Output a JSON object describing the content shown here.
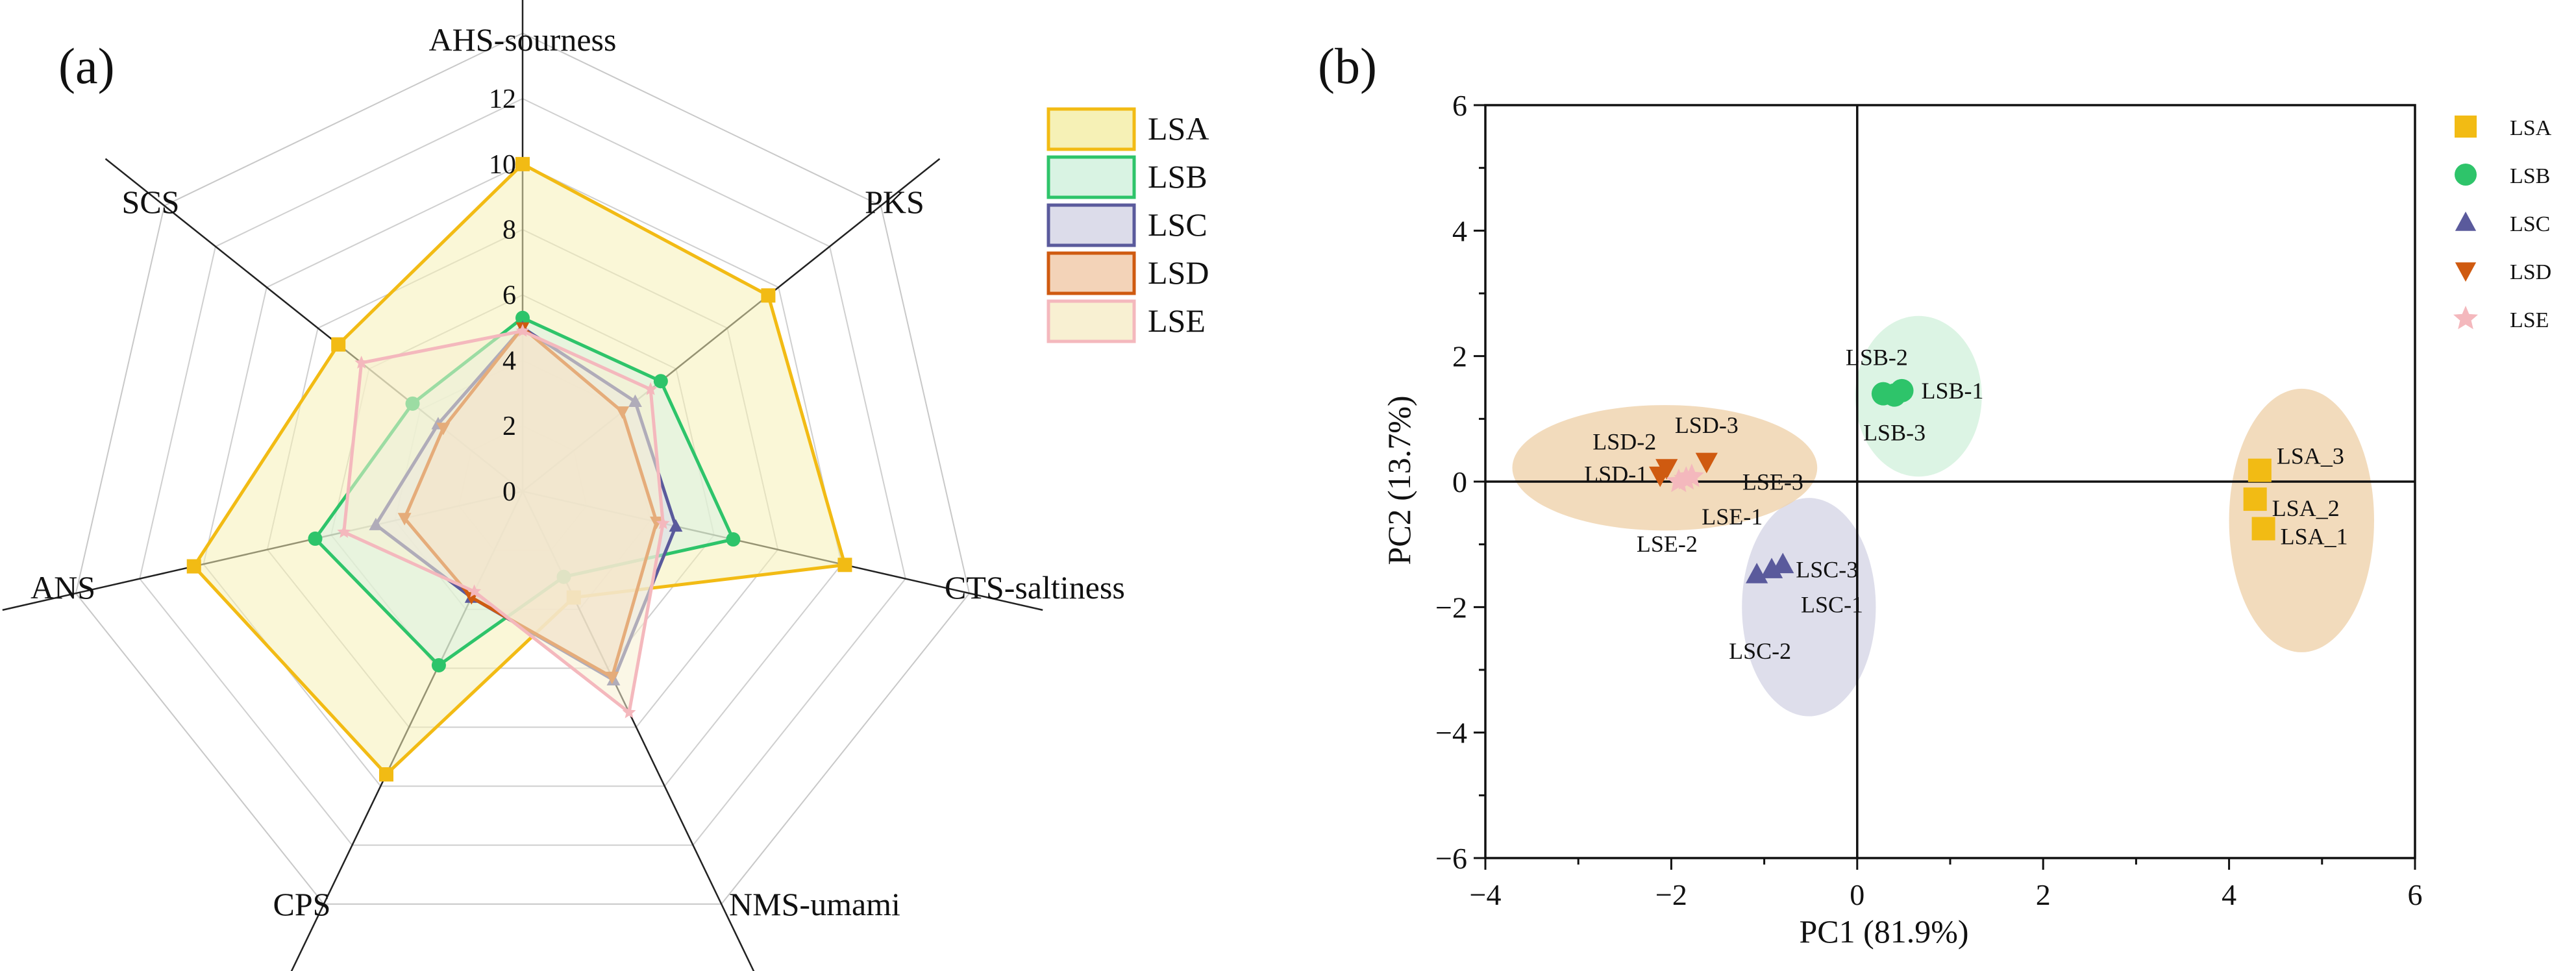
{
  "chart_data": [
    {
      "panel_label": "(a)",
      "type": "radar",
      "axes": [
        "AHS-sourness",
        "PKS",
        "CTS-saltiness",
        "NMS-umami",
        "CPS",
        "ANS",
        "SCS"
      ],
      "rlim": [
        0,
        12
      ],
      "rticks": [
        "0",
        "2",
        "4",
        "6",
        "8",
        "10",
        "12"
      ],
      "series": [
        {
          "name": "LSA",
          "values": [
            10.0,
            9.6,
            10.1,
            3.6,
            9.6,
            10.3,
            7.2
          ],
          "line": "#f2bb14",
          "fill": "#f6f1b6",
          "marker": "square"
        },
        {
          "name": "LSB",
          "values": [
            5.3,
            5.4,
            6.6,
            2.9,
            5.9,
            6.5,
            4.3
          ],
          "line": "#2ec46a",
          "fill": "#d9f3e3",
          "marker": "circle"
        },
        {
          "name": "LSC",
          "values": [
            5.0,
            4.4,
            4.8,
            6.4,
            3.6,
            4.6,
            3.3
          ],
          "line": "#5a5a9c",
          "fill": "#dcdcea",
          "marker": "triangle-up"
        },
        {
          "name": "LSD",
          "values": [
            5.0,
            3.9,
            4.2,
            6.3,
            3.6,
            3.7,
            3.1
          ],
          "line": "#cf5a10",
          "fill": "#f3d3b8",
          "marker": "triangle-down"
        },
        {
          "name": "LSE",
          "values": [
            4.9,
            5.0,
            4.4,
            7.5,
            3.4,
            5.6,
            6.3
          ],
          "line": "#f4b8bd",
          "fill": "#f8f0d2",
          "marker": "star"
        }
      ]
    },
    {
      "panel_label": "(b)",
      "type": "scatter",
      "xlabel": "PC1 (81.9%)",
      "ylabel": "PC2 (13.7%)",
      "xlim": [
        -4,
        6
      ],
      "ylim": [
        -6,
        6
      ],
      "xticks": [
        "−4",
        "−2",
        "0",
        "2",
        "4",
        "6"
      ],
      "yticks": [
        "−6",
        "−4",
        "−2",
        "0",
        "2",
        "4",
        "6"
      ],
      "series": [
        {
          "name": "LSA",
          "color": "#f2bb14",
          "marker": "square",
          "points": [
            {
              "label": "LSA_3",
              "x": 4.33,
              "y": 0.18
            },
            {
              "label": "LSA_2",
              "x": 4.28,
              "y": -0.28
            },
            {
              "label": "LSA_1",
              "x": 4.37,
              "y": -0.75
            }
          ]
        },
        {
          "name": "LSB",
          "color": "#2ec46a",
          "marker": "circle",
          "points": [
            {
              "label": "LSB-2",
              "x": 0.28,
              "y": 1.4
            },
            {
              "label": "LSB-1",
              "x": 0.48,
              "y": 1.45
            },
            {
              "label": "LSB-3",
              "x": 0.4,
              "y": 1.38
            }
          ]
        },
        {
          "name": "LSC",
          "color": "#5a5a9c",
          "marker": "triangle-up",
          "points": [
            {
              "label": "LSC-3",
              "x": -0.8,
              "y": -1.32
            },
            {
              "label": "LSC-1",
              "x": -0.92,
              "y": -1.4
            },
            {
              "label": "LSC-2",
              "x": -1.08,
              "y": -1.48
            }
          ]
        },
        {
          "name": "LSD",
          "color": "#cf5a10",
          "marker": "triangle-down",
          "points": [
            {
              "label": "LSD-3",
              "x": -1.62,
              "y": 0.32
            },
            {
              "label": "LSD-2",
              "x": -2.05,
              "y": 0.22
            },
            {
              "label": "LSD-1",
              "x": -2.12,
              "y": 0.1
            }
          ]
        },
        {
          "name": "LSE",
          "color": "#f4b8bd",
          "marker": "star",
          "points": [
            {
              "label": "LSE-3",
              "x": -1.78,
              "y": 0.08
            },
            {
              "label": "LSE-1",
              "x": -1.84,
              "y": 0.04
            },
            {
              "label": "LSE-2",
              "x": -1.92,
              "y": 0.0
            }
          ]
        }
      ],
      "ellipses": [
        {
          "group": "LSA",
          "cx": 4.78,
          "cy": -0.62,
          "rx": 0.78,
          "ry": 2.1,
          "color": "#f0d5b0"
        },
        {
          "group": "LSB",
          "cx": 0.66,
          "cy": 1.36,
          "rx": 0.68,
          "ry": 1.28,
          "color": "#d6f2df"
        },
        {
          "group": "LSC",
          "cx": -0.52,
          "cy": -2.0,
          "rx": 0.72,
          "ry": 1.74,
          "color": "#d8d8e8"
        },
        {
          "group": "LSD",
          "cx": -2.07,
          "cy": 0.22,
          "rx": 1.64,
          "ry": 1.0,
          "color": "#f0d5b0"
        }
      ]
    }
  ]
}
